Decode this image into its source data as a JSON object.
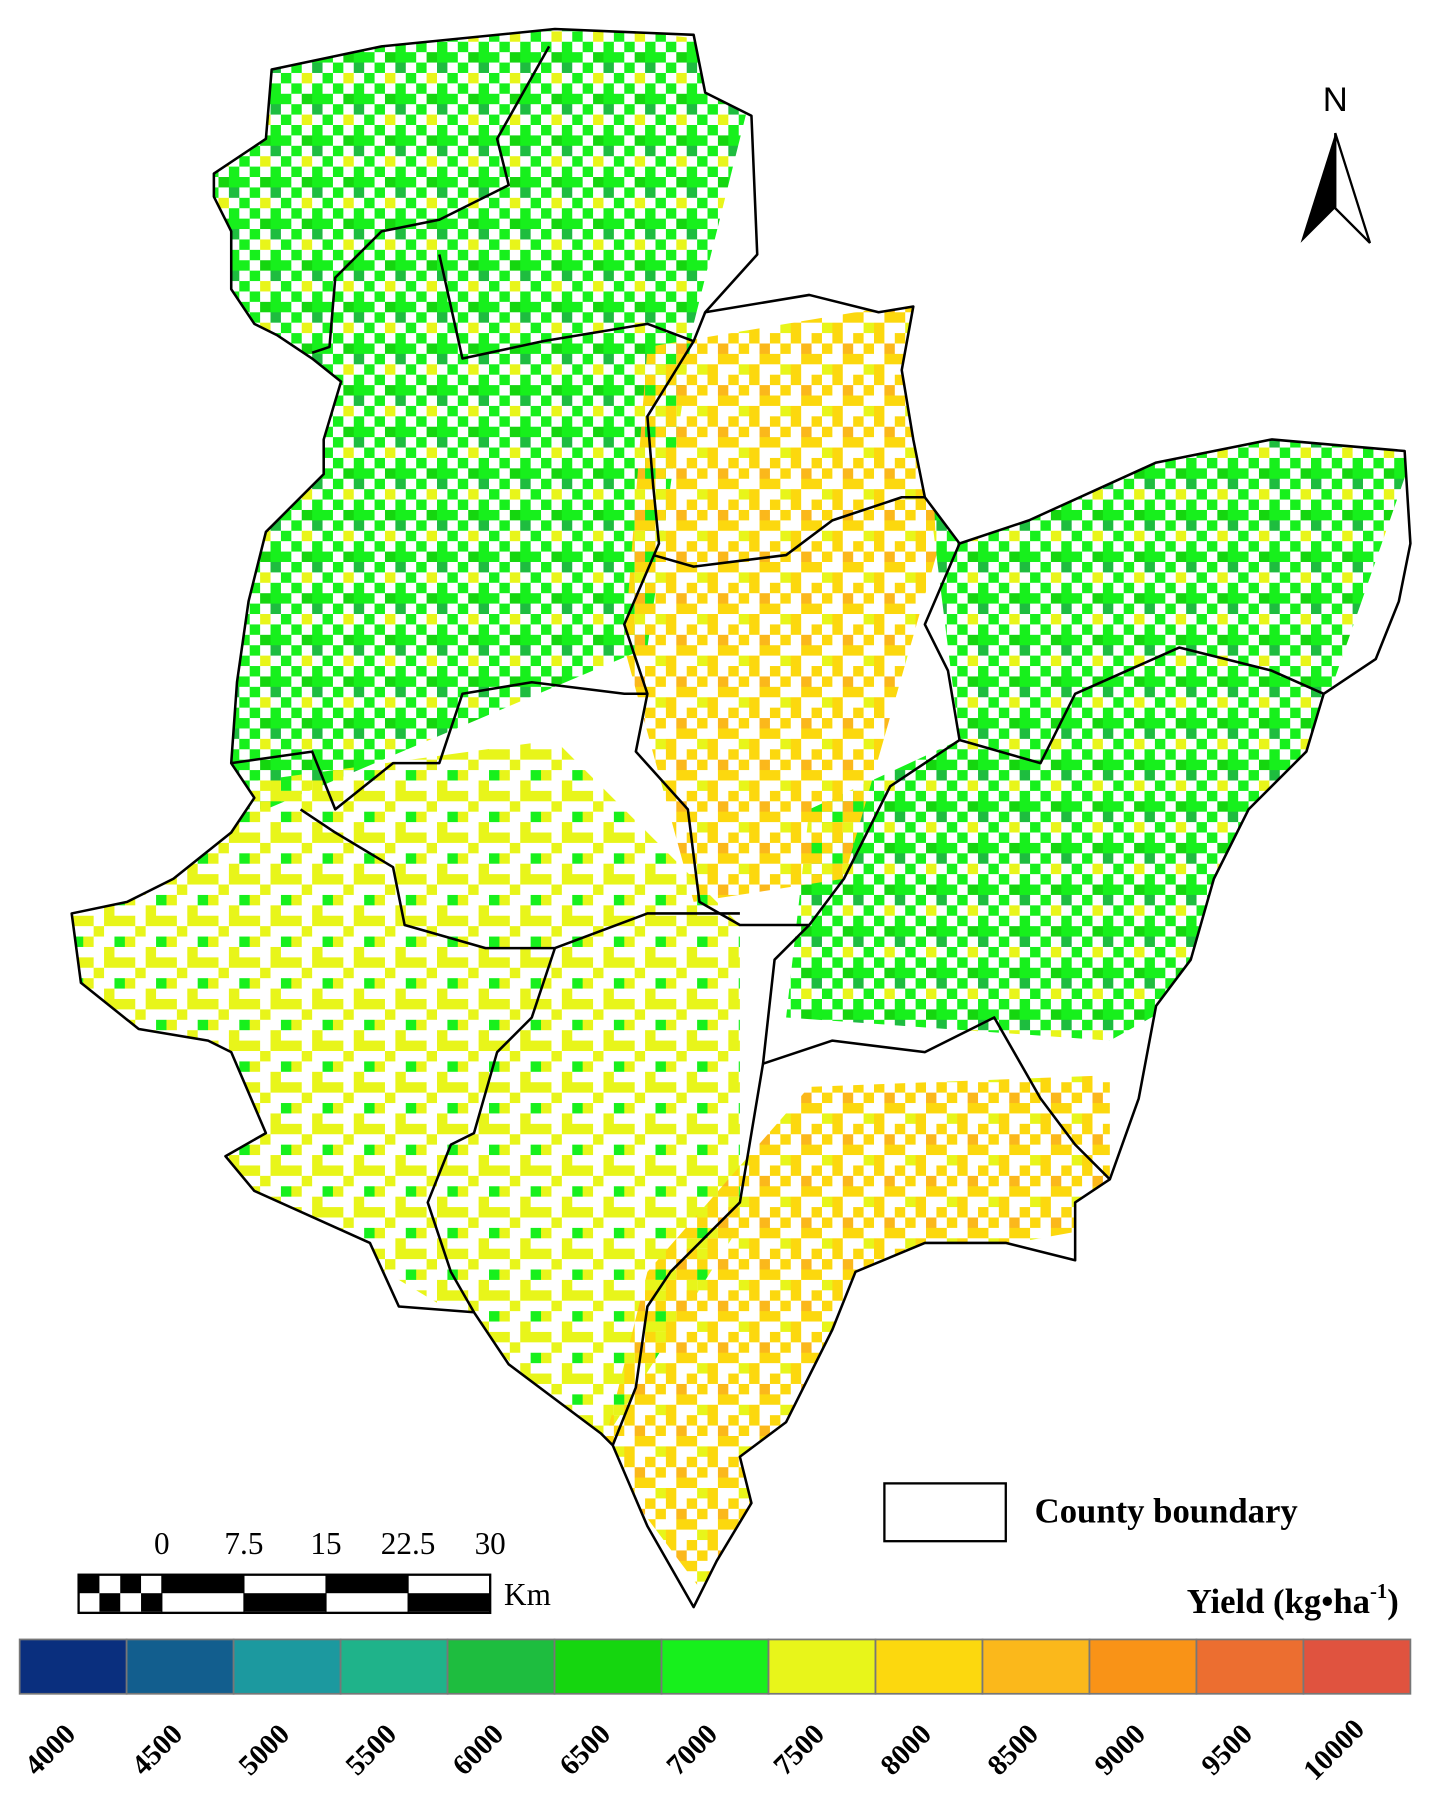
{
  "map": {
    "north_label": "N",
    "boundary_legend": "County boundary",
    "yield_title": {
      "text": "Yield (kg•ha",
      "superscript": "-1",
      "close": ")"
    },
    "scale_bar": {
      "ticks": [
        0,
        7.5,
        15,
        22.5,
        30
      ],
      "unit": "Km"
    },
    "classes": [
      {
        "value": 4000,
        "color": "#0a2f7e"
      },
      {
        "value": 4500,
        "color": "#125e8e"
      },
      {
        "value": 5000,
        "color": "#1c999f"
      },
      {
        "value": 5500,
        "color": "#1fb38a"
      },
      {
        "value": 6000,
        "color": "#1ebd3f"
      },
      {
        "value": 6500,
        "color": "#15d60f"
      },
      {
        "value": 7000,
        "color": "#17f01c"
      },
      {
        "value": 7500,
        "color": "#e8f51a"
      },
      {
        "value": 8000,
        "color": "#fcd80e"
      },
      {
        "value": 8500,
        "color": "#fbb81b"
      },
      {
        "value": 9000,
        "color": "#f99317"
      },
      {
        "value": 9500,
        "color": "#ec6e30"
      },
      {
        "value": 10000,
        "color": "#e0533f"
      }
    ]
  }
}
